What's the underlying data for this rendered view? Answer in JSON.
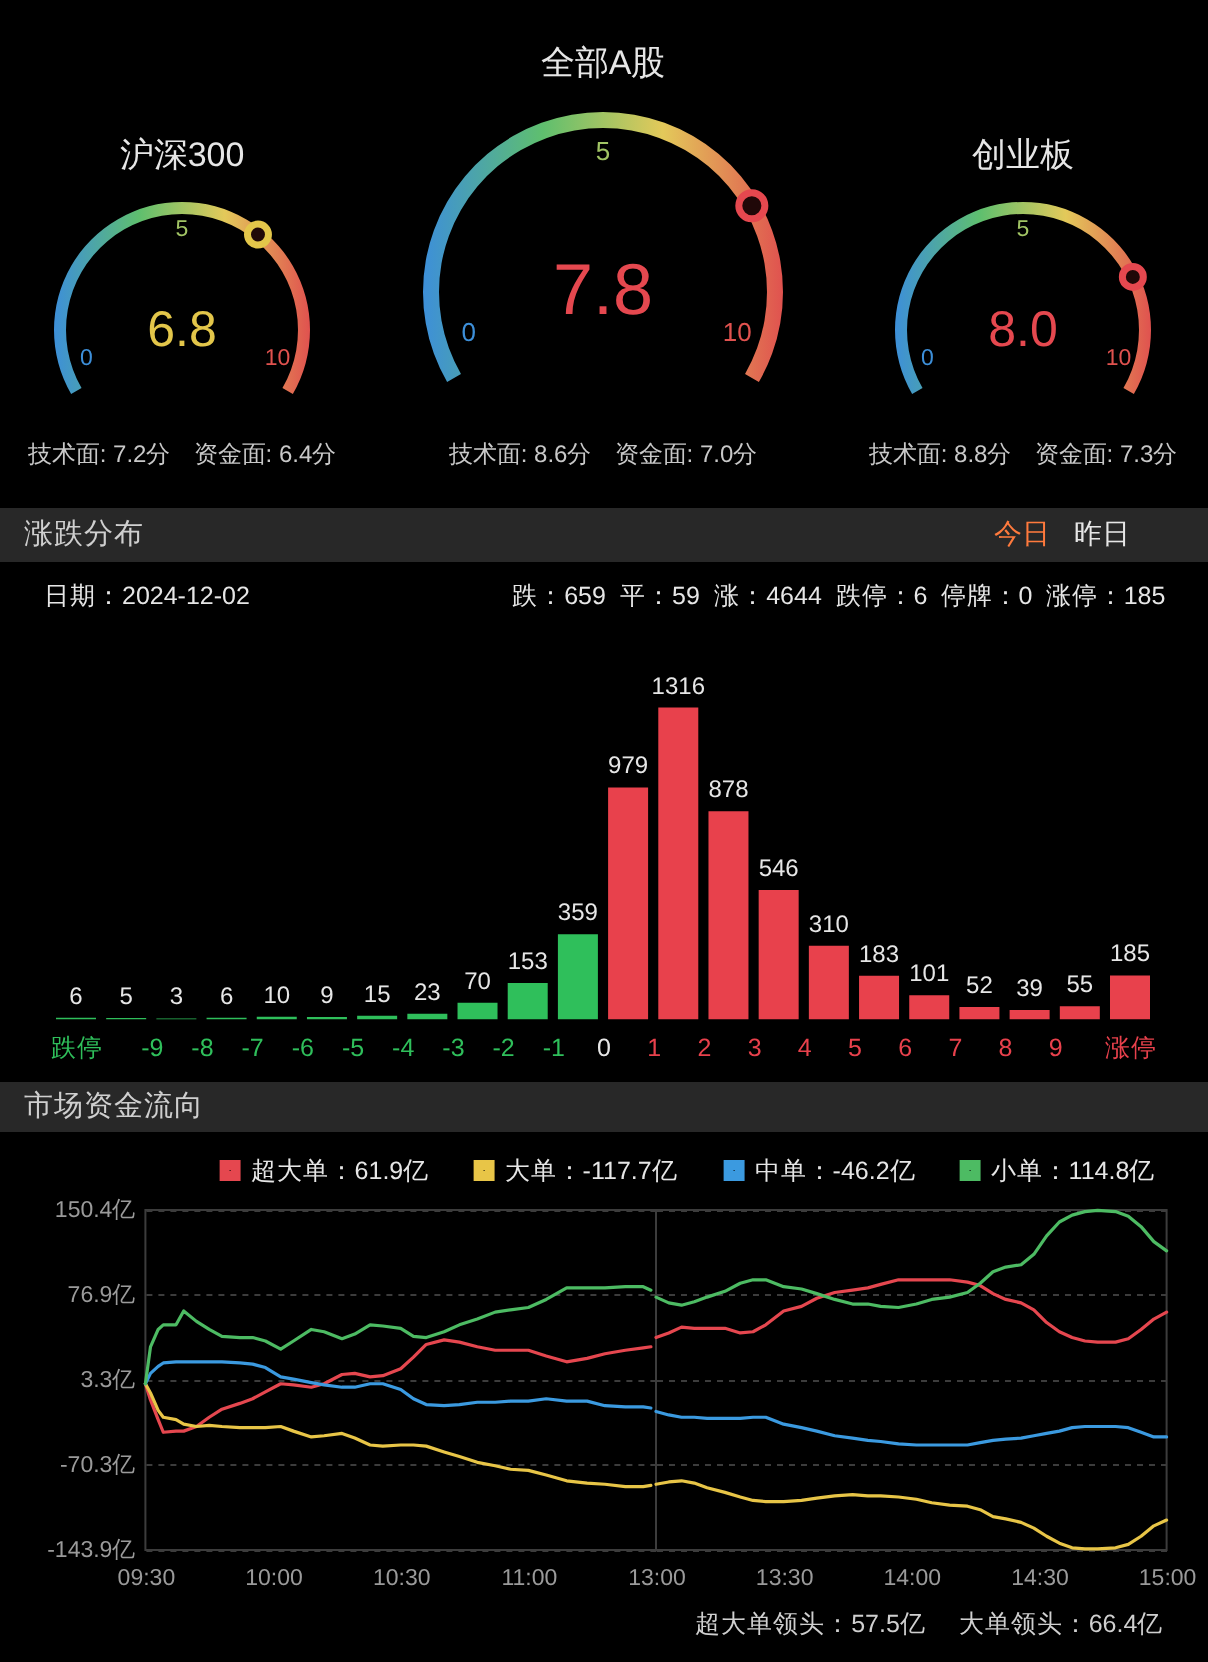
{
  "chart_data": [
    {
      "type": "other",
      "title": "沪深300",
      "values": [
        6.8
      ],
      "value_labels": [
        "6.8"
      ],
      "color": "#e3c64a",
      "annotations": [
        "0",
        "5",
        "10",
        "技术面: 7.2分",
        "资金面: 6.4分"
      ]
    },
    {
      "type": "other",
      "title": "全部A股",
      "values": [
        7.8
      ],
      "value_labels": [
        "7.8"
      ],
      "color": "#e5484f",
      "annotations": [
        "0",
        "5",
        "10",
        "技术面: 8.6分",
        "资金面: 7.0分"
      ]
    },
    {
      "type": "other",
      "title": "创业板",
      "values": [
        8.0
      ],
      "value_labels": [
        "8.0"
      ],
      "color": "#e5484f",
      "annotations": [
        "0",
        "5",
        "10",
        "技术面: 8.8分",
        "资金面: 7.3分"
      ]
    },
    {
      "type": "bar",
      "title": "涨跌分布",
      "x": [
        -10.5,
        -9.5,
        -8.5,
        -7.5,
        -6.5,
        -5.5,
        -4.5,
        -3.5,
        -2.5,
        -1.5,
        -0.5,
        0.5,
        1.5,
        2.5,
        3.5,
        4.5,
        5.5,
        6.5,
        7.5,
        8.5,
        9.5,
        10.5
      ],
      "values": [
        6,
        5,
        3,
        6,
        10,
        9,
        15,
        23,
        70,
        153,
        359,
        979,
        1316,
        878,
        546,
        310,
        183,
        101,
        52,
        39,
        55,
        185
      ],
      "colors": [
        "#2fbf5b",
        "#2fbf5b",
        "#2fbf5b",
        "#2fbf5b",
        "#2fbf5b",
        "#2fbf5b",
        "#2fbf5b",
        "#2fbf5b",
        "#2fbf5b",
        "#2fbf5b",
        "#2fbf5b",
        "#e8414c",
        "#e8414c",
        "#e8414c",
        "#e8414c",
        "#e8414c",
        "#e8414c",
        "#e8414c",
        "#e8414c",
        "#e8414c",
        "#e8414c",
        "#e8414c"
      ],
      "xlim": [
        -10.5,
        10.5
      ],
      "xticks": [
        {
          "value": -10.5,
          "label": "跌停"
        },
        -9,
        -8,
        -7,
        -6,
        -5,
        -4,
        -3,
        -2,
        -1,
        0,
        1,
        2,
        3,
        4,
        5,
        6,
        7,
        8,
        9,
        {
          "value": 10.5,
          "label": "涨停"
        }
      ],
      "tick_labels": "x",
      "data_labels": true,
      "annotations": [
        "日期：2024-12-02",
        "跌：659",
        "平：59",
        "涨：4644",
        "跌停：6",
        "停牌：0",
        "涨停：185",
        "今日",
        "昨日"
      ]
    },
    {
      "type": "line",
      "title": "市场资金流向",
      "x": [
        9.5,
        9.52,
        9.55,
        9.57,
        9.62,
        9.65,
        9.7,
        9.75,
        9.8,
        9.87,
        9.92,
        9.97,
        10.03,
        10.08,
        10.15,
        10.2,
        10.27,
        10.32,
        10.38,
        10.43,
        10.5,
        10.55,
        10.6,
        10.67,
        10.73,
        10.8,
        10.87,
        10.93,
        11.0,
        11.07,
        11.15,
        11.23,
        11.3,
        11.38,
        11.45,
        11.48
      ],
      "series": [
        {
          "name": "超大单：61.9亿",
          "color": "#e5474f",
          "values": [
            0,
            -14,
            -31,
            -42,
            -41,
            -41,
            -37,
            -29,
            -22,
            -17,
            -13,
            -7,
            0,
            -1,
            -3,
            0,
            8,
            9,
            6,
            7,
            13,
            23,
            34,
            38,
            36,
            32,
            29,
            29,
            29,
            24,
            19,
            22,
            26,
            29,
            31,
            32
          ]
        },
        {
          "name": "大单：-117.7亿",
          "color": "#e8c547",
          "values": [
            0,
            -8,
            -23,
            -29,
            -31,
            -35,
            -37,
            -36,
            -37,
            -38,
            -38,
            -38,
            -37,
            -41,
            -46,
            -45,
            -43,
            -47,
            -53,
            -54,
            -53,
            -53,
            -54,
            -59,
            -63,
            -68,
            -71,
            -74,
            -75,
            -79,
            -84,
            -86,
            -87,
            -89,
            -89,
            -88
          ]
        },
        {
          "name": "中单：-46.2亿",
          "color": "#3b9ae0",
          "values": [
            0,
            9,
            15,
            18,
            19,
            19,
            19,
            19,
            19,
            18,
            17,
            14,
            6,
            4,
            1,
            -1,
            -3,
            -3,
            0,
            0,
            -5,
            -13,
            -18,
            -19,
            -18,
            -16,
            -16,
            -15,
            -15,
            -13,
            -15,
            -15,
            -19,
            -20,
            -20,
            -21
          ]
        },
        {
          "name": "小单：114.8亿",
          "color": "#4dbb63",
          "values": [
            0,
            32,
            47,
            51,
            51,
            63,
            54,
            47,
            41,
            40,
            40,
            37,
            30,
            37,
            47,
            45,
            39,
            43,
            51,
            50,
            48,
            41,
            40,
            45,
            51,
            56,
            62,
            64,
            66,
            73,
            83,
            83,
            83,
            84,
            84,
            81
          ]
        }
      ],
      "xlim": [
        9.5,
        11.5
      ],
      "xticks": [
        {
          "value": 9.5,
          "label": "09:30"
        },
        {
          "value": 10,
          "label": "10:00"
        },
        {
          "value": 10.5,
          "label": "10:30"
        },
        {
          "value": 11,
          "label": "11:00"
        }
      ],
      "ylim": [
        -143.9,
        150.4
      ],
      "yticks": [
        {
          "value": -143.9,
          "label": "-143.9亿"
        },
        {
          "value": -70.3,
          "label": "-70.3亿"
        },
        {
          "value": 3.3,
          "label": "3.3亿"
        },
        {
          "value": 76.9,
          "label": "76.9亿"
        },
        {
          "value": 150.4,
          "label": "150.4亿"
        }
      ],
      "grid": "y",
      "legend": "top right"
    },
    {
      "type": "line",
      "x": [
        13.0,
        13.05,
        13.1,
        13.15,
        13.2,
        13.27,
        13.33,
        13.38,
        13.43,
        13.5,
        13.57,
        13.63,
        13.7,
        13.77,
        13.83,
        13.88,
        13.95,
        14.02,
        14.08,
        14.15,
        14.22,
        14.27,
        14.32,
        14.37,
        14.43,
        14.48,
        14.53,
        14.58,
        14.63,
        14.68,
        14.73,
        14.8,
        14.85,
        14.9,
        14.95,
        15.0
      ],
      "series": [
        {
          "color": "#e5474f",
          "values": [
            40,
            44,
            49,
            48,
            48,
            48,
            44,
            45,
            51,
            63,
            67,
            74,
            79,
            81,
            83,
            86,
            90,
            90,
            90,
            90,
            88,
            85,
            78,
            73,
            70,
            64,
            53,
            45,
            40,
            37,
            36,
            36,
            39,
            47,
            56,
            62
          ]
        },
        {
          "color": "#e8c547",
          "values": [
            -87,
            -85,
            -84,
            -86,
            -90,
            -94,
            -98,
            -101,
            -102,
            -102,
            -101,
            -99,
            -97,
            -96,
            -97,
            -97,
            -98,
            -100,
            -103,
            -105,
            -106,
            -109,
            -115,
            -117,
            -120,
            -125,
            -132,
            -138,
            -142,
            -143,
            -143,
            -142,
            -139,
            -132,
            -123,
            -118
          ]
        },
        {
          "color": "#3b9ae0",
          "values": [
            -24,
            -27,
            -29,
            -29,
            -30,
            -30,
            -30,
            -29,
            -29,
            -35,
            -38,
            -41,
            -45,
            -47,
            -49,
            -50,
            -52,
            -53,
            -53,
            -53,
            -53,
            -51,
            -49,
            -48,
            -47,
            -45,
            -43,
            -41,
            -38,
            -37,
            -37,
            -37,
            -38,
            -42,
            -46,
            -46
          ]
        },
        {
          "color": "#4dbb63",
          "values": [
            75,
            70,
            68,
            71,
            75,
            80,
            87,
            90,
            90,
            84,
            82,
            78,
            73,
            69,
            69,
            67,
            66,
            69,
            73,
            75,
            79,
            87,
            97,
            101,
            103,
            112,
            128,
            140,
            146,
            149,
            150,
            149,
            145,
            136,
            123,
            115
          ]
        }
      ],
      "xlim": [
        13,
        15
      ],
      "xticks": [
        {
          "value": 13,
          "label": "13:00"
        },
        {
          "value": 13.5,
          "label": "13:30"
        },
        {
          "value": 14,
          "label": "14:00"
        },
        {
          "value": 14.5,
          "label": "14:30"
        },
        {
          "value": 15,
          "label": "15:00"
        }
      ],
      "ylim": [
        -143.9,
        150.4
      ],
      "yticks": [
        -143.9,
        -70.3,
        3.3,
        76.9,
        150.4
      ],
      "tick_labels": "x",
      "grid": "y",
      "annotations": [
        "超大单领头：57.5亿",
        "大单领头：66.4亿"
      ]
    }
  ]
}
